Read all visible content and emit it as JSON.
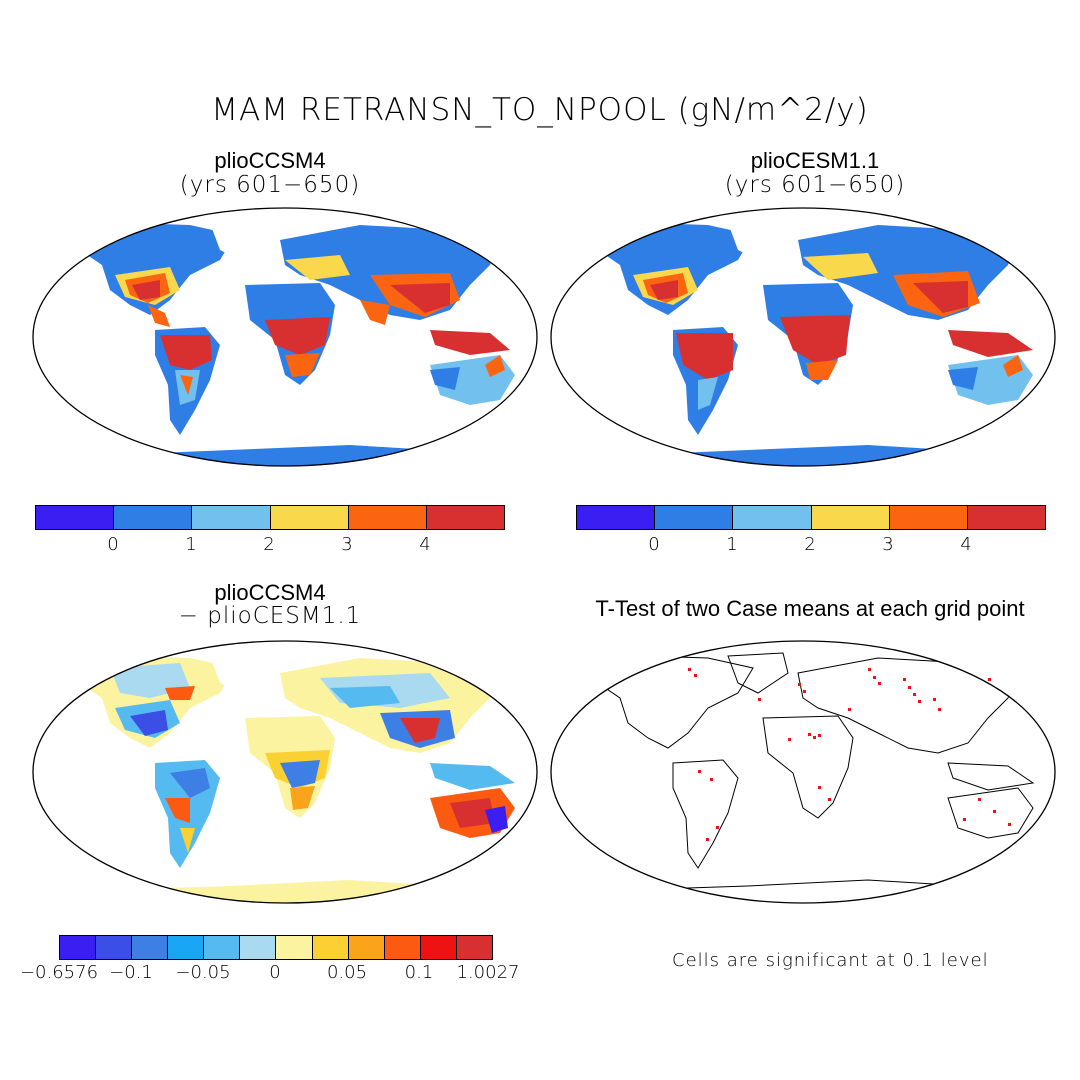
{
  "figure": {
    "title": "MAM RETRANSN_TO_NPOOL (gN/m^2/y)",
    "note": "Cells are significant at 0.1 level"
  },
  "panels": [
    {
      "title": "plioCCSM4",
      "subtitle": "(yrs 601−650)"
    },
    {
      "title": "plioCESM1.1",
      "subtitle": "(yrs 601−650)"
    },
    {
      "title": "plioCCSM4",
      "subtitle": "− plioCESM1.1"
    },
    {
      "title": "T-Test of two Case means at each grid point",
      "subtitle": ""
    }
  ],
  "colorbars": {
    "absolute": {
      "colors": [
        "#3b1ff2",
        "#2f7ee6",
        "#72c0ee",
        "#fad84c",
        "#fb6410",
        "#d83030"
      ],
      "labels": [
        "0",
        "1",
        "2",
        "3",
        "4"
      ]
    },
    "difference": {
      "colors": [
        "#3b1ff2",
        "#3b4ee6",
        "#3e7fe6",
        "#1aa6f5",
        "#55baf0",
        "#a9daef",
        "#fbf3a0",
        "#fbd032",
        "#fba31a",
        "#fb5a10",
        "#ee1212",
        "#d83030"
      ],
      "labels": [
        "−0.6576",
        "−0.1",
        "−0.05",
        "0",
        "0.05",
        "0.1",
        "1.0027"
      ]
    }
  }
}
